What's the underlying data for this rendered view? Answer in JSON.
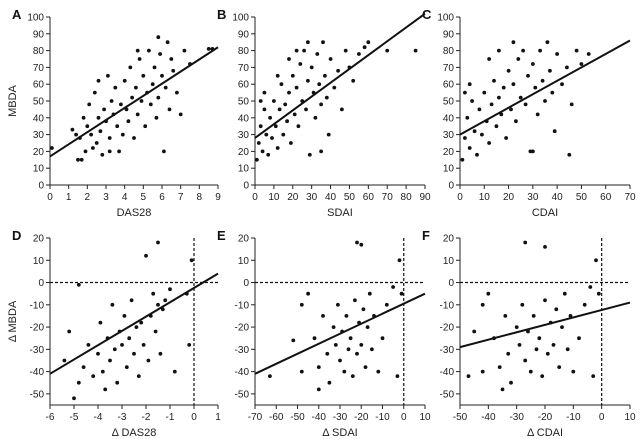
{
  "chart_data": [
    {
      "type": "scatter",
      "panel": "A",
      "xlabel": "DAS28",
      "ylabel": "MBDA",
      "xlim": [
        0,
        9
      ],
      "ylim": [
        0,
        100
      ],
      "xticks": [
        0,
        1,
        2,
        3,
        4,
        5,
        6,
        7,
        8,
        9
      ],
      "yticks": [
        0,
        10,
        20,
        30,
        40,
        50,
        60,
        70,
        80,
        90,
        100
      ],
      "fit_line": [
        [
          0,
          17
        ],
        [
          9,
          82
        ]
      ],
      "ref_lines": [],
      "points": [
        [
          0.1,
          22
        ],
        [
          1.2,
          33
        ],
        [
          1.4,
          30
        ],
        [
          1.5,
          15
        ],
        [
          1.6,
          28
        ],
        [
          1.7,
          15
        ],
        [
          1.8,
          40
        ],
        [
          1.9,
          20
        ],
        [
          2.0,
          35
        ],
        [
          2.1,
          48
        ],
        [
          2.2,
          30
        ],
        [
          2.3,
          22
        ],
        [
          2.4,
          55
        ],
        [
          2.5,
          25
        ],
        [
          2.6,
          40
        ],
        [
          2.7,
          32
        ],
        [
          2.8,
          18
        ],
        [
          2.9,
          45
        ],
        [
          3.0,
          38
        ],
        [
          3.1,
          65
        ],
        [
          3.2,
          28
        ],
        [
          3.3,
          50
        ],
        [
          3.4,
          42
        ],
        [
          3.5,
          58
        ],
        [
          3.6,
          35
        ],
        [
          3.7,
          20
        ],
        [
          3.8,
          48
        ],
        [
          3.9,
          30
        ],
        [
          4.0,
          62
        ],
        [
          4.1,
          45
        ],
        [
          4.2,
          38
        ],
        [
          4.3,
          70
        ],
        [
          4.4,
          52
        ],
        [
          4.5,
          28
        ],
        [
          4.6,
          58
        ],
        [
          4.7,
          42
        ],
        [
          4.8,
          75
        ],
        [
          4.9,
          50
        ],
        [
          5.0,
          65
        ],
        [
          5.1,
          35
        ],
        [
          5.2,
          55
        ],
        [
          5.3,
          80
        ],
        [
          5.4,
          48
        ],
        [
          5.5,
          60
        ],
        [
          5.6,
          70
        ],
        [
          5.7,
          40
        ],
        [
          5.8,
          52
        ],
        [
          5.9,
          78
        ],
        [
          6.0,
          65
        ],
        [
          6.1,
          20
        ],
        [
          6.2,
          58
        ],
        [
          6.3,
          85
        ],
        [
          6.4,
          45
        ],
        [
          6.5,
          75
        ],
        [
          6.6,
          68
        ],
        [
          6.8,
          55
        ],
        [
          7.0,
          42
        ],
        [
          7.2,
          80
        ],
        [
          7.5,
          72
        ],
        [
          8.5,
          81
        ],
        [
          8.7,
          81
        ],
        [
          3.2,
          20
        ],
        [
          2.6,
          62
        ],
        [
          4.7,
          80
        ],
        [
          5.8,
          88
        ]
      ]
    },
    {
      "type": "scatter",
      "panel": "B",
      "xlabel": "SDAI",
      "ylabel": "",
      "xlim": [
        0,
        90
      ],
      "ylim": [
        0,
        100
      ],
      "xticks": [
        0,
        10,
        20,
        30,
        40,
        50,
        60,
        70,
        80,
        90
      ],
      "yticks": [
        0,
        10,
        20,
        30,
        40,
        50,
        60,
        70,
        80,
        90,
        100
      ],
      "fit_line": [
        [
          0,
          28
        ],
        [
          90,
          102
        ]
      ],
      "ref_lines": [],
      "points": [
        [
          1,
          15
        ],
        [
          2,
          25
        ],
        [
          3,
          35
        ],
        [
          4,
          20
        ],
        [
          5,
          45
        ],
        [
          6,
          30
        ],
        [
          7,
          18
        ],
        [
          8,
          40
        ],
        [
          9,
          28
        ],
        [
          10,
          50
        ],
        [
          11,
          35
        ],
        [
          12,
          22
        ],
        [
          13,
          45
        ],
        [
          14,
          60
        ],
        [
          15,
          30
        ],
        [
          16,
          48
        ],
        [
          17,
          38
        ],
        [
          18,
          55
        ],
        [
          19,
          25
        ],
        [
          20,
          65
        ],
        [
          21,
          42
        ],
        [
          22,
          58
        ],
        [
          23,
          35
        ],
        [
          24,
          72
        ],
        [
          25,
          50
        ],
        [
          26,
          80
        ],
        [
          27,
          45
        ],
        [
          28,
          62
        ],
        [
          29,
          18
        ],
        [
          30,
          70
        ],
        [
          31,
          55
        ],
        [
          32,
          40
        ],
        [
          33,
          78
        ],
        [
          34,
          60
        ],
        [
          35,
          48
        ],
        [
          36,
          85
        ],
        [
          37,
          65
        ],
        [
          38,
          52
        ],
        [
          39,
          30
        ],
        [
          40,
          75
        ],
        [
          42,
          58
        ],
        [
          44,
          68
        ],
        [
          46,
          45
        ],
        [
          48,
          80
        ],
        [
          50,
          70
        ],
        [
          52,
          62
        ],
        [
          55,
          78
        ],
        [
          58,
          82
        ],
        [
          60,
          85
        ],
        [
          70,
          80
        ],
        [
          85,
          80
        ],
        [
          3,
          50
        ],
        [
          5,
          55
        ],
        [
          12,
          65
        ],
        [
          18,
          75
        ],
        [
          22,
          80
        ],
        [
          28,
          85
        ],
        [
          35,
          20
        ]
      ]
    },
    {
      "type": "scatter",
      "panel": "C",
      "xlabel": "CDAI",
      "ylabel": "",
      "xlim": [
        0,
        70
      ],
      "ylim": [
        0,
        100
      ],
      "xticks": [
        0,
        10,
        20,
        30,
        40,
        50,
        60,
        70
      ],
      "yticks": [
        0,
        10,
        20,
        30,
        40,
        50,
        60,
        70,
        80,
        90,
        100
      ],
      "fit_line": [
        [
          0,
          30
        ],
        [
          70,
          86
        ]
      ],
      "ref_lines": [],
      "points": [
        [
          1,
          15
        ],
        [
          2,
          28
        ],
        [
          3,
          40
        ],
        [
          4,
          22
        ],
        [
          5,
          50
        ],
        [
          6,
          32
        ],
        [
          7,
          18
        ],
        [
          8,
          45
        ],
        [
          9,
          30
        ],
        [
          10,
          55
        ],
        [
          11,
          38
        ],
        [
          12,
          25
        ],
        [
          13,
          48
        ],
        [
          14,
          62
        ],
        [
          15,
          35
        ],
        [
          16,
          52
        ],
        [
          17,
          42
        ],
        [
          18,
          58
        ],
        [
          19,
          28
        ],
        [
          20,
          68
        ],
        [
          21,
          45
        ],
        [
          22,
          60
        ],
        [
          23,
          38
        ],
        [
          24,
          75
        ],
        [
          25,
          52
        ],
        [
          26,
          80
        ],
        [
          27,
          48
        ],
        [
          28,
          65
        ],
        [
          29,
          20
        ],
        [
          30,
          72
        ],
        [
          31,
          58
        ],
        [
          32,
          42
        ],
        [
          33,
          80
        ],
        [
          34,
          62
        ],
        [
          35,
          50
        ],
        [
          36,
          85
        ],
        [
          37,
          68
        ],
        [
          38,
          55
        ],
        [
          39,
          32
        ],
        [
          40,
          78
        ],
        [
          42,
          60
        ],
        [
          44,
          70
        ],
        [
          45,
          18
        ],
        [
          46,
          48
        ],
        [
          48,
          80
        ],
        [
          50,
          72
        ],
        [
          53,
          78
        ],
        [
          2,
          55
        ],
        [
          4,
          60
        ],
        [
          12,
          75
        ],
        [
          16,
          80
        ],
        [
          22,
          85
        ],
        [
          30,
          20
        ]
      ]
    },
    {
      "type": "scatter",
      "panel": "D",
      "xlabel": "Δ DAS28",
      "ylabel": "Δ MBDA",
      "xlim": [
        -6,
        1
      ],
      "ylim": [
        -55,
        20
      ],
      "xticks": [
        -6,
        -5,
        -4,
        -3,
        -2,
        -1,
        0,
        1
      ],
      "yticks": [
        -50,
        -40,
        -30,
        -20,
        -10,
        0,
        10,
        20
      ],
      "fit_line": [
        [
          -6,
          -41
        ],
        [
          1,
          4
        ]
      ],
      "ref_lines": [
        {
          "axis": "y",
          "value": 0
        },
        {
          "axis": "x",
          "value": 0
        }
      ],
      "points": [
        [
          -5.4,
          -35
        ],
        [
          -5.2,
          -22
        ],
        [
          -5.0,
          -52
        ],
        [
          -4.8,
          -45
        ],
        [
          -4.6,
          -38
        ],
        [
          -4.4,
          -28
        ],
        [
          -4.2,
          -42
        ],
        [
          -4.0,
          -32
        ],
        [
          -3.9,
          -18
        ],
        [
          -3.8,
          -40
        ],
        [
          -3.6,
          -25
        ],
        [
          -3.5,
          -35
        ],
        [
          -3.4,
          -10
        ],
        [
          -3.3,
          -30
        ],
        [
          -3.2,
          -45
        ],
        [
          -3.1,
          -22
        ],
        [
          -3.0,
          -28
        ],
        [
          -2.9,
          -15
        ],
        [
          -2.8,
          -38
        ],
        [
          -2.7,
          -25
        ],
        [
          -2.6,
          -8
        ],
        [
          -2.5,
          -32
        ],
        [
          -2.4,
          -20
        ],
        [
          -2.3,
          -42
        ],
        [
          -2.2,
          -18
        ],
        [
          -2.1,
          -28
        ],
        [
          -2.0,
          12
        ],
        [
          -1.9,
          -35
        ],
        [
          -1.8,
          -15
        ],
        [
          -1.7,
          -5
        ],
        [
          -1.6,
          -22
        ],
        [
          -1.5,
          -10
        ],
        [
          -1.4,
          -32
        ],
        [
          -1.3,
          -12
        ],
        [
          -1.2,
          -8
        ],
        [
          -1.0,
          -3
        ],
        [
          -0.8,
          -40
        ],
        [
          -0.3,
          -5
        ],
        [
          -0.2,
          -28
        ],
        [
          -0.1,
          10
        ],
        [
          -1.5,
          18
        ],
        [
          -4.8,
          -1
        ],
        [
          -3.7,
          -48
        ]
      ]
    },
    {
      "type": "scatter",
      "panel": "E",
      "xlabel": "Δ SDAI",
      "ylabel": "",
      "xlim": [
        -70,
        10
      ],
      "ylim": [
        -55,
        20
      ],
      "xticks": [
        -70,
        -60,
        -50,
        -40,
        -30,
        -20,
        -10,
        0,
        10
      ],
      "yticks": [
        -50,
        -40,
        -30,
        -20,
        -10,
        0,
        10,
        20
      ],
      "fit_line": [
        [
          -70,
          -41
        ],
        [
          10,
          -5
        ]
      ],
      "ref_lines": [
        {
          "axis": "y",
          "value": 0
        },
        {
          "axis": "x",
          "value": 0
        }
      ],
      "points": [
        [
          -63,
          -42
        ],
        [
          -52,
          -26
        ],
        [
          -48,
          -40
        ],
        [
          -45,
          -5
        ],
        [
          -42,
          -25
        ],
        [
          -40,
          -38
        ],
        [
          -38,
          -15
        ],
        [
          -36,
          -32
        ],
        [
          -35,
          -45
        ],
        [
          -33,
          -20
        ],
        [
          -32,
          -28
        ],
        [
          -31,
          -10
        ],
        [
          -30,
          -35
        ],
        [
          -29,
          -22
        ],
        [
          -28,
          -40
        ],
        [
          -27,
          -15
        ],
        [
          -26,
          -30
        ],
        [
          -25,
          -25
        ],
        [
          -24,
          -42
        ],
        [
          -23,
          -8
        ],
        [
          -22,
          -32
        ],
        [
          -22,
          18
        ],
        [
          -21,
          -18
        ],
        [
          -20,
          17
        ],
        [
          -20,
          -28
        ],
        [
          -19,
          -12
        ],
        [
          -18,
          -38
        ],
        [
          -17,
          -20
        ],
        [
          -16,
          -5
        ],
        [
          -15,
          -30
        ],
        [
          -14,
          -15
        ],
        [
          -12,
          -40
        ],
        [
          -10,
          -25
        ],
        [
          -8,
          -10
        ],
        [
          -5,
          -2
        ],
        [
          -3,
          -42
        ],
        [
          -2,
          10
        ],
        [
          -1,
          -5
        ],
        [
          -40,
          -48
        ],
        [
          -48,
          -10
        ]
      ]
    },
    {
      "type": "scatter",
      "panel": "F",
      "xlabel": "Δ CDAI",
      "ylabel": "",
      "xlim": [
        -50,
        10
      ],
      "ylim": [
        -55,
        20
      ],
      "xticks": [
        -50,
        -40,
        -30,
        -20,
        -10,
        0,
        10
      ],
      "yticks": [
        -50,
        -40,
        -30,
        -20,
        -10,
        0,
        10,
        20
      ],
      "fit_line": [
        [
          -50,
          -29
        ],
        [
          10,
          -9
        ]
      ],
      "ref_lines": [
        {
          "axis": "y",
          "value": 0
        },
        {
          "axis": "x",
          "value": 0
        }
      ],
      "points": [
        [
          -47,
          -42
        ],
        [
          -45,
          -22
        ],
        [
          -42,
          -40
        ],
        [
          -40,
          -5
        ],
        [
          -38,
          -25
        ],
        [
          -36,
          -38
        ],
        [
          -34,
          -15
        ],
        [
          -33,
          -32
        ],
        [
          -32,
          -45
        ],
        [
          -30,
          -20
        ],
        [
          -29,
          -28
        ],
        [
          -28,
          -10
        ],
        [
          -27,
          18
        ],
        [
          -27,
          -35
        ],
        [
          -26,
          -22
        ],
        [
          -25,
          -40
        ],
        [
          -24,
          -15
        ],
        [
          -23,
          -30
        ],
        [
          -22,
          -25
        ],
        [
          -21,
          -42
        ],
        [
          -20,
          16
        ],
        [
          -20,
          -8
        ],
        [
          -19,
          -32
        ],
        [
          -18,
          -18
        ],
        [
          -17,
          -28
        ],
        [
          -16,
          -12
        ],
        [
          -15,
          -38
        ],
        [
          -14,
          -20
        ],
        [
          -13,
          -5
        ],
        [
          -12,
          -30
        ],
        [
          -11,
          -15
        ],
        [
          -10,
          -40
        ],
        [
          -8,
          -25
        ],
        [
          -6,
          -10
        ],
        [
          -4,
          -2
        ],
        [
          -3,
          -42
        ],
        [
          -2,
          10
        ],
        [
          -1,
          -5
        ],
        [
          -35,
          -48
        ],
        [
          -42,
          -10
        ]
      ]
    }
  ]
}
